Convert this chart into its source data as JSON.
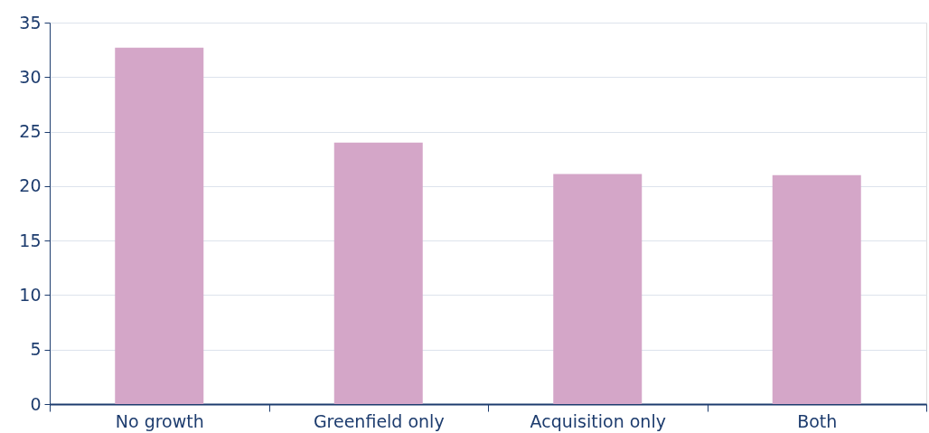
{
  "chart_data": {
    "type": "bar",
    "categories": [
      "No growth",
      "Greenfield only",
      "Acquisition only",
      "Both"
    ],
    "values": [
      32.7,
      24.0,
      21.1,
      21.0
    ],
    "color": "#d4a6c8",
    "ylim": [
      0,
      35
    ],
    "yticks": [
      0,
      5,
      10,
      15,
      20,
      25,
      30,
      35
    ],
    "grid": "y"
  }
}
